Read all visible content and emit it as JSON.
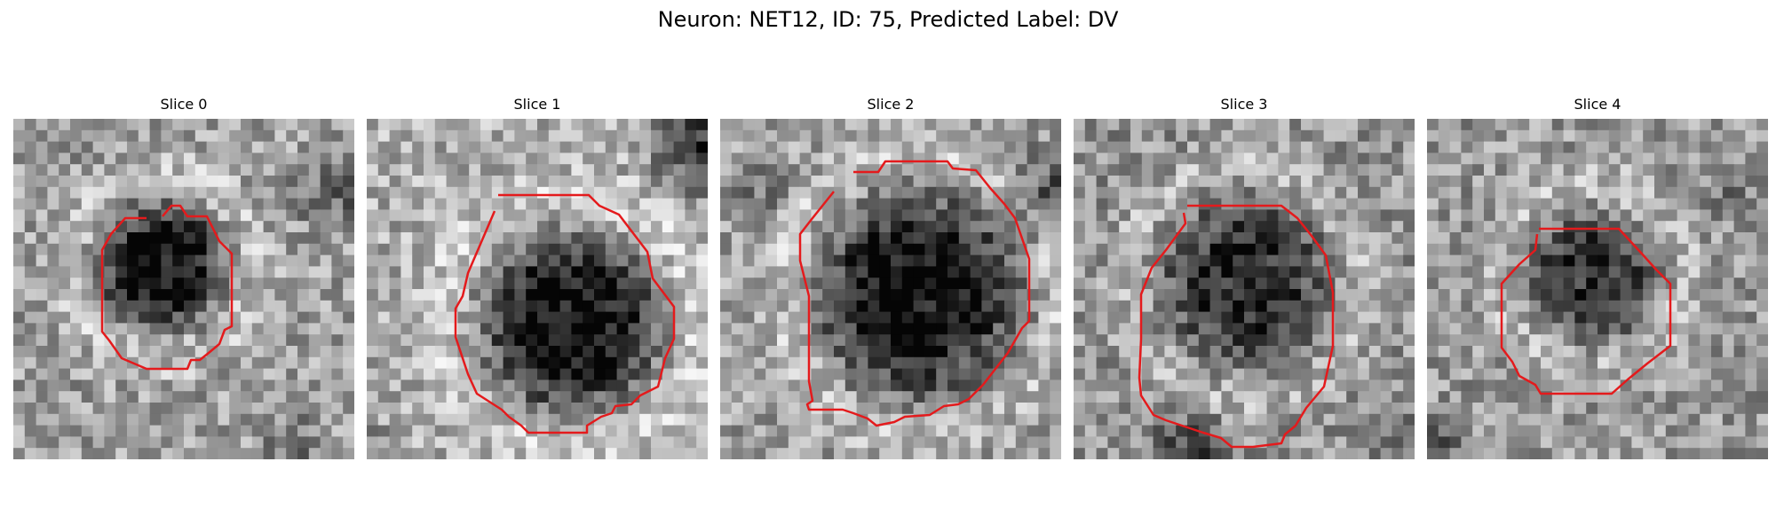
{
  "figure": {
    "title": "Neuron: NET12, ID: 75, Predicted Label: DV"
  },
  "panels": [
    {
      "title": "Slice 0"
    },
    {
      "title": "Slice 1"
    },
    {
      "title": "Slice 2"
    },
    {
      "title": "Slice 3"
    },
    {
      "title": "Slice 4"
    }
  ],
  "style": {
    "contour_color": "#e41a1c",
    "colormap": "grayscale"
  }
}
